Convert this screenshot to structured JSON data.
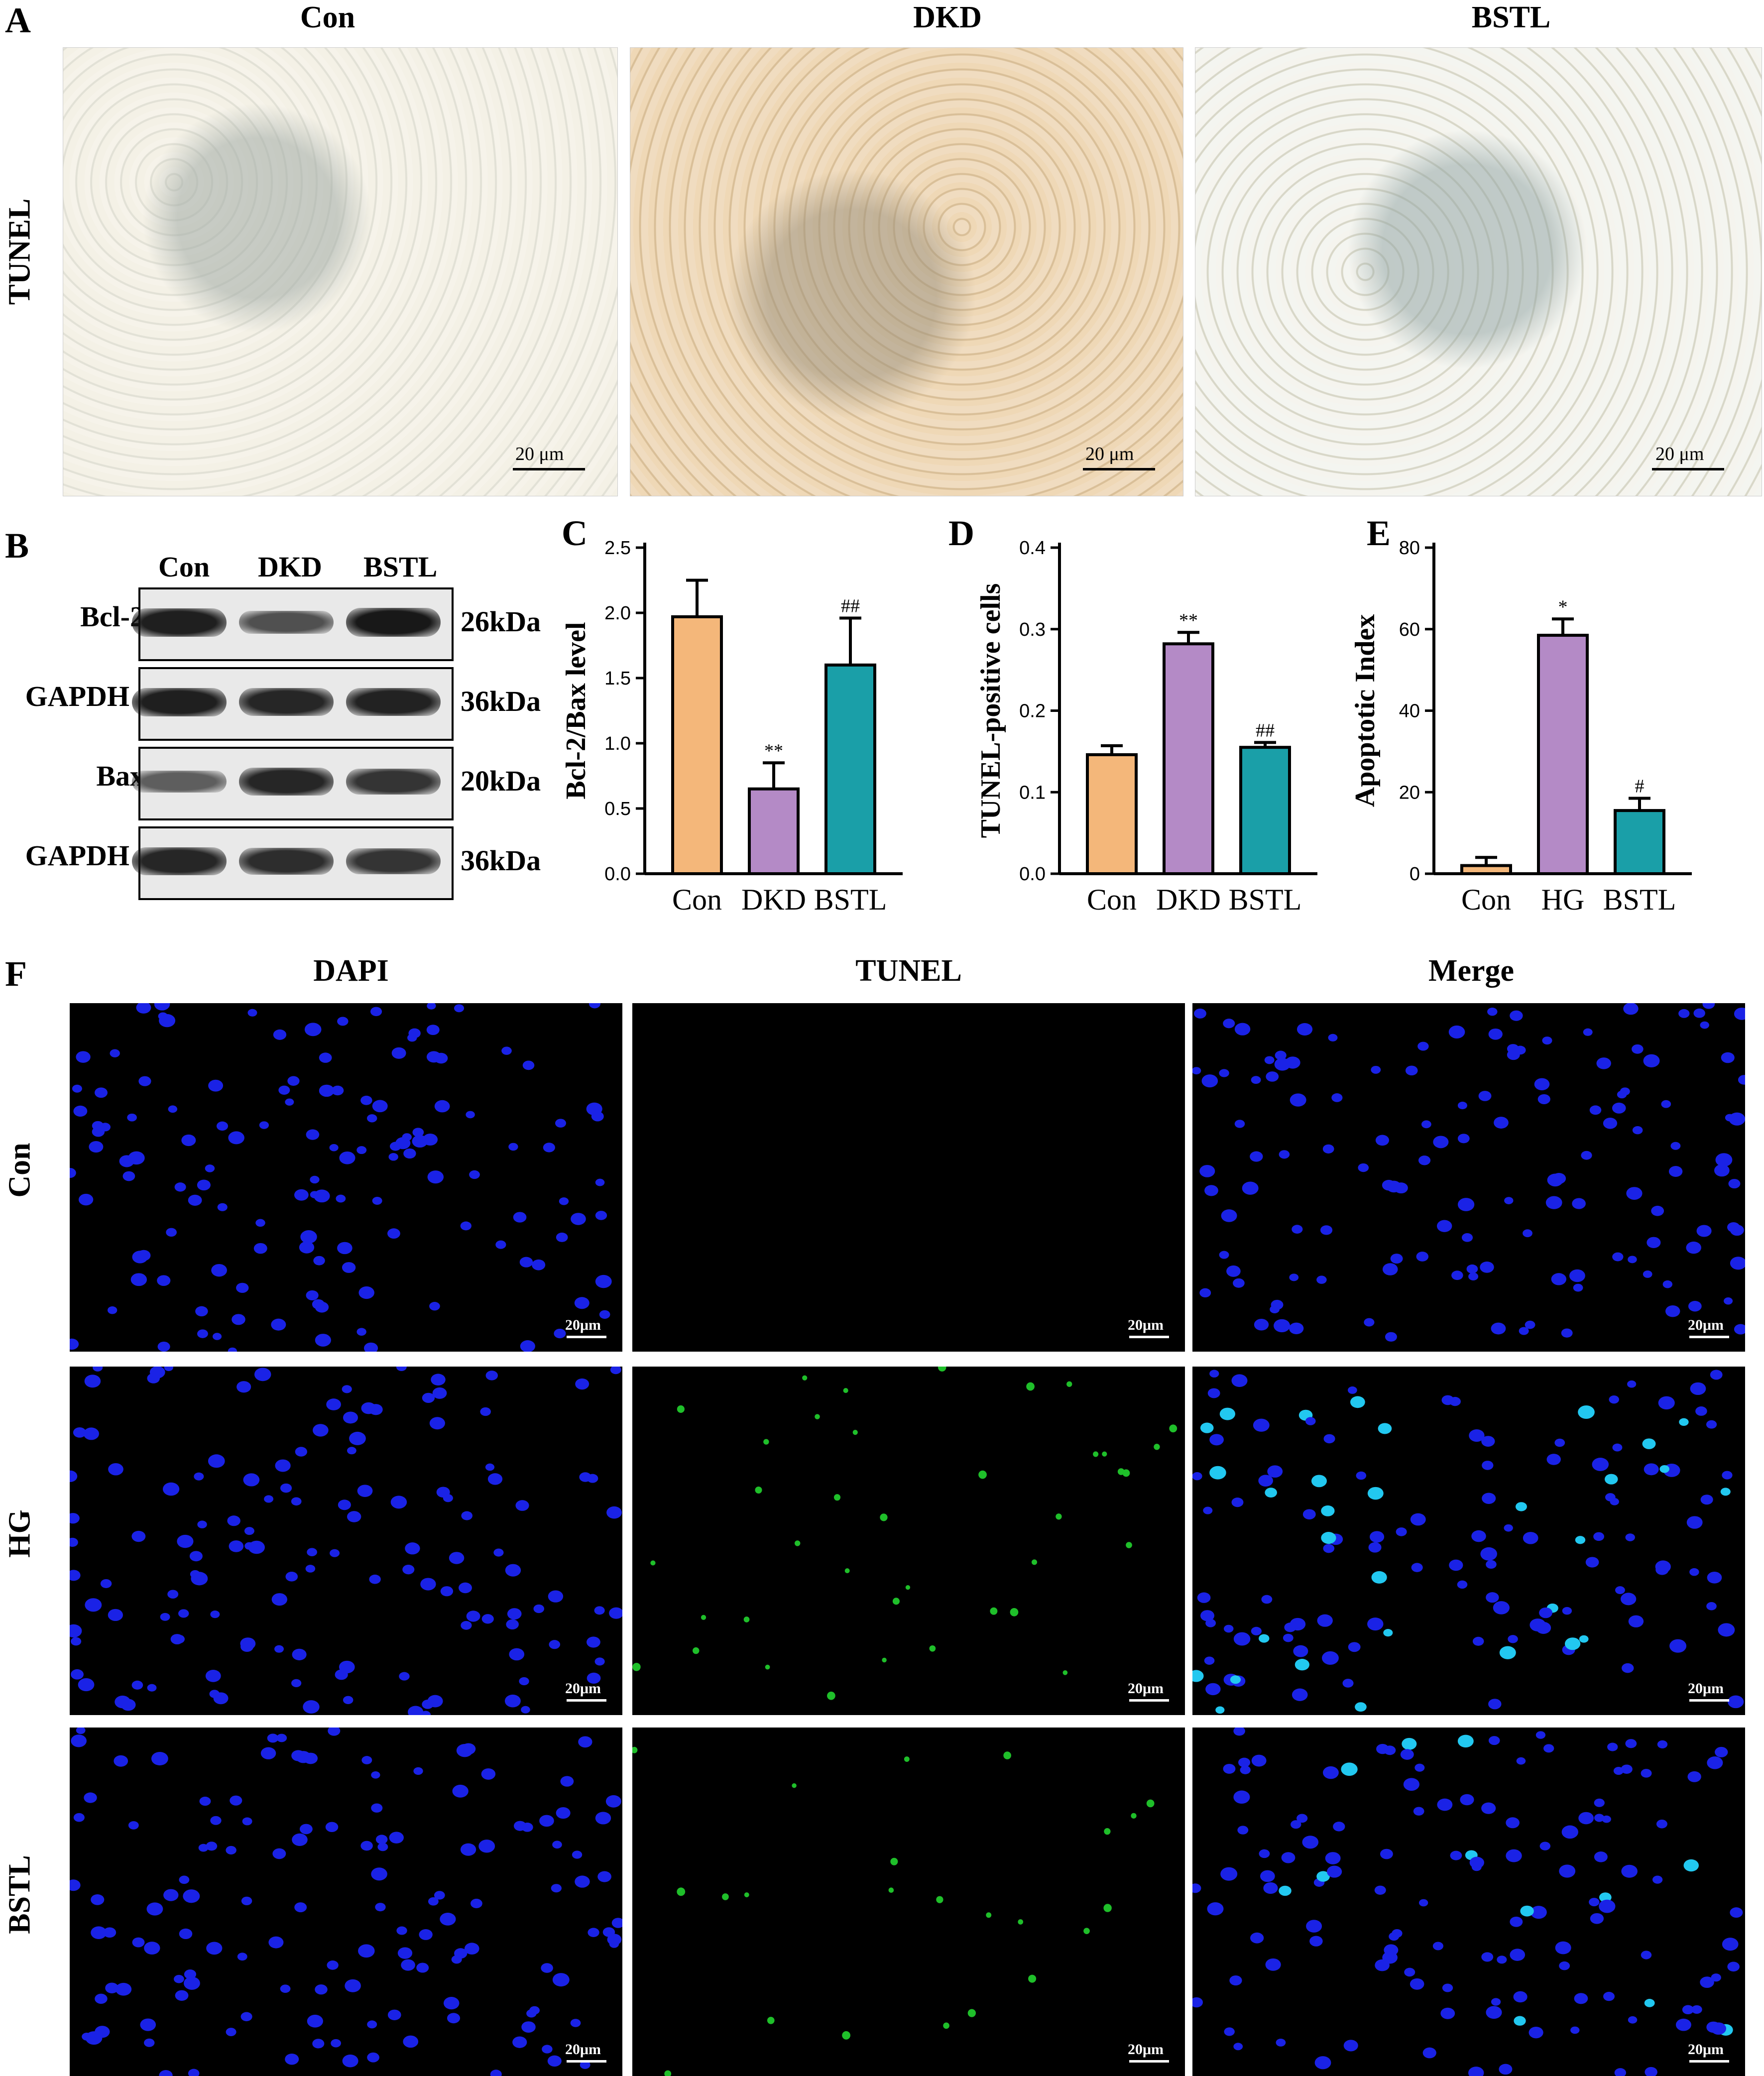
{
  "panel_letters": {
    "A": "A",
    "B": "B",
    "C": "C",
    "D": "D",
    "E": "E",
    "F": "F"
  },
  "panelA": {
    "columns": [
      "Con",
      "DKD",
      "BSTL"
    ],
    "row_label": "TUNEL",
    "scalebar": "20 μm"
  },
  "panelB": {
    "columns": [
      "Con",
      "DKD",
      "BSTL"
    ],
    "rows": [
      {
        "name": "Bcl-2",
        "size": "26kDa"
      },
      {
        "name": "GAPDH",
        "size": "36kDa"
      },
      {
        "name": "Bax",
        "size": "20kDa"
      },
      {
        "name": "GAPDH",
        "size": "36kDa"
      }
    ],
    "band_intensity": [
      [
        0.9,
        0.55,
        0.95
      ],
      [
        0.9,
        0.85,
        0.88
      ],
      [
        0.45,
        0.85,
        0.75
      ],
      [
        0.85,
        0.8,
        0.75
      ]
    ]
  },
  "colors": {
    "con": "#f4b77a",
    "dkd": "#b48ac6",
    "bstl": "#1a9fa8"
  },
  "chart_data": [
    {
      "type": "bar",
      "panel": "C",
      "categories": [
        "Con",
        "DKD",
        "BSTL"
      ],
      "values": [
        1.97,
        0.65,
        1.6
      ],
      "errors": [
        0.28,
        0.2,
        0.36
      ],
      "annotations": [
        "",
        "**",
        "##"
      ],
      "ylabel": "Bcl-2/Bax level",
      "ylim": [
        0,
        2.5
      ],
      "yticks": [
        "0.0",
        "0.5",
        "1.0",
        "1.5",
        "2.0",
        "2.5"
      ]
    },
    {
      "type": "bar",
      "panel": "D",
      "categories": [
        "Con",
        "DKD",
        "BSTL"
      ],
      "values": [
        0.146,
        0.282,
        0.155
      ],
      "errors": [
        0.011,
        0.014,
        0.006
      ],
      "annotations": [
        "",
        "**",
        "##"
      ],
      "ylabel": "TUNEL-positive cells",
      "ylim": [
        0,
        0.4
      ],
      "yticks": [
        "0.0",
        "0.1",
        "0.2",
        "0.3",
        "0.4"
      ]
    },
    {
      "type": "bar",
      "panel": "E",
      "categories": [
        "Con",
        "HG",
        "BSTL"
      ],
      "values": [
        2.0,
        58.5,
        15.5
      ],
      "errors": [
        2.0,
        4.0,
        3.0
      ],
      "annotations": [
        "",
        "*",
        "#"
      ],
      "ylabel": "Apoptotic Index",
      "ylim": [
        0,
        80
      ],
      "yticks": [
        "0",
        "20",
        "40",
        "60",
        "80"
      ]
    }
  ],
  "panelF": {
    "columns": [
      "DAPI",
      "TUNEL",
      "Merge"
    ],
    "rows": [
      "Con",
      "HG",
      "BSTL"
    ],
    "scalebar": "20μm"
  }
}
